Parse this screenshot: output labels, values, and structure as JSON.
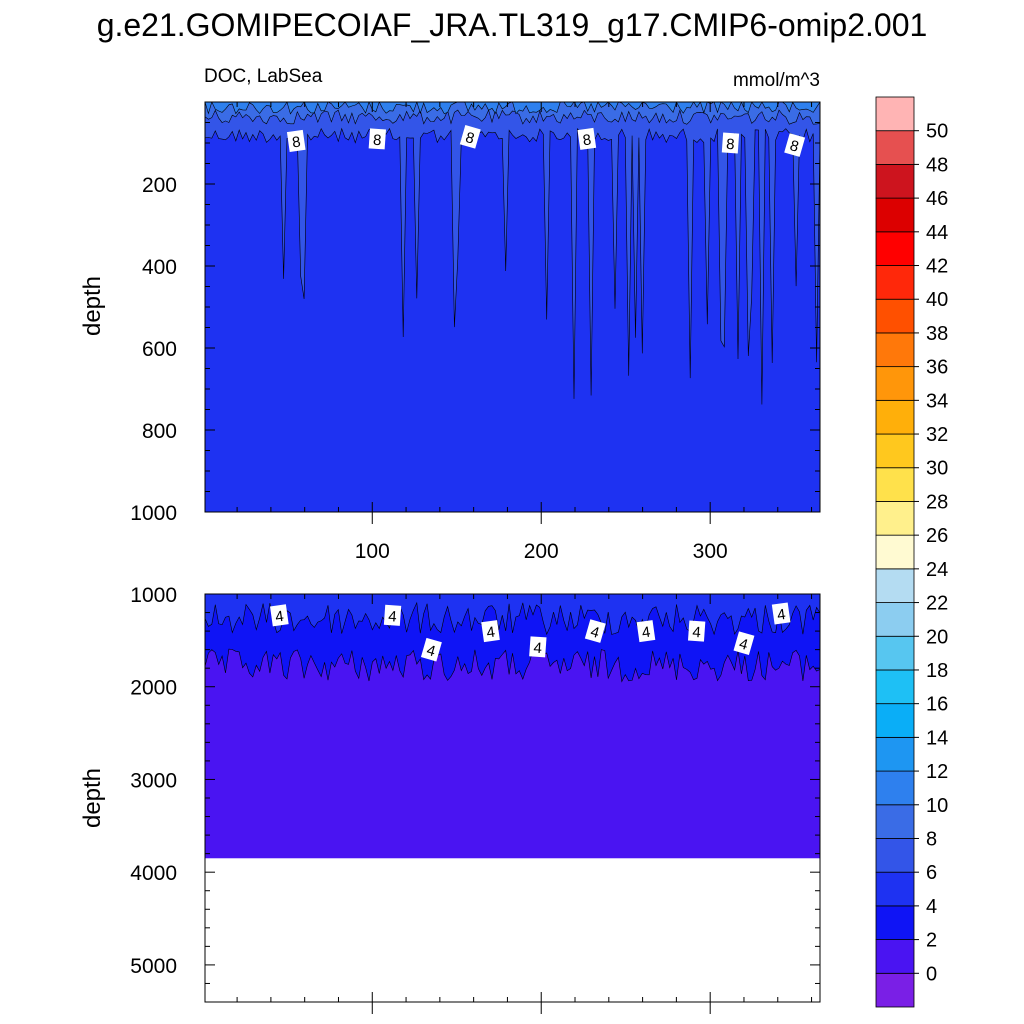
{
  "title": "g.e21.GOMIPECOIAF_JRA.TL319_g17.CMIP6-omip2.001",
  "chart_data": [
    {
      "type": "heatmap",
      "panel": "upper",
      "left_label": "DOC, LabSea",
      "right_label": "mmol/m^3",
      "ylabel": "depth",
      "xlabel": "",
      "xlim": [
        1,
        365
      ],
      "ylim": [
        0,
        1000
      ],
      "y_inverted": true,
      "xticks": [
        100,
        200,
        300
      ],
      "xtick_labels": [
        "100",
        "200",
        "300"
      ],
      "yticks": [
        200,
        400,
        600,
        800,
        1000
      ],
      "ytick_labels": [
        "200",
        "400",
        "600",
        "800",
        "1000"
      ],
      "contour_labels": [
        "8",
        "8",
        "8",
        "8",
        "8",
        "8"
      ],
      "contour_label_x": [
        55,
        103,
        158,
        227,
        312,
        350
      ],
      "contour_label_depth": [
        95,
        90,
        85,
        90,
        100,
        105
      ],
      "layers": [
        {
          "range": "6-8",
          "base_depth": 75,
          "dips_to": [
            680,
            750,
            770,
            790,
            800,
            830
          ]
        },
        {
          "range": "8-10",
          "base_depth": 30
        },
        {
          "range": "10-12",
          "base_depth": 5
        }
      ],
      "background_range": "4-6"
    },
    {
      "type": "heatmap",
      "panel": "lower",
      "ylabel": "depth",
      "xlim": [
        1,
        365
      ],
      "ylim": [
        1000,
        5400
      ],
      "y_inverted": true,
      "yticks": [
        1000,
        2000,
        3000,
        4000,
        5000
      ],
      "ytick_labels": [
        "1000",
        "2000",
        "3000",
        "4000",
        "5000"
      ],
      "bottom_depth": 3850,
      "contour_labels": [
        "4",
        "4",
        "4",
        "4",
        "4",
        "4",
        "4",
        "4",
        "4",
        "4"
      ],
      "contour_label_x": [
        45,
        112,
        135,
        170,
        198,
        232,
        262,
        292,
        320,
        342
      ],
      "contour_label_depth": [
        1230,
        1230,
        1600,
        1400,
        1570,
        1400,
        1400,
        1400,
        1530,
        1210
      ],
      "layers": [
        {
          "range": "2-4",
          "base_depth": 1700
        },
        {
          "range": "4-6",
          "base_depth": 1200
        }
      ],
      "background_range": "0-2"
    }
  ],
  "colorbar": {
    "labels": [
      "0",
      "2",
      "4",
      "6",
      "8",
      "10",
      "12",
      "14",
      "16",
      "18",
      "20",
      "22",
      "24",
      "26",
      "28",
      "30",
      "32",
      "34",
      "36",
      "38",
      "40",
      "42",
      "44",
      "46",
      "48",
      "50"
    ],
    "colors": [
      "#7a1fe6",
      "#4a14f2",
      "#0f14f5",
      "#1e32f2",
      "#3355e8",
      "#3a6ce6",
      "#2e80ee",
      "#1e96f2",
      "#0aaef7",
      "#1ec0f5",
      "#57c6f0",
      "#8ccdf0",
      "#b4dcf2",
      "#fffad2",
      "#fff08c",
      "#ffe14b",
      "#ffc81e",
      "#ffaf0a",
      "#ff960a",
      "#ff780a",
      "#ff5000",
      "#ff280a",
      "#ff0000",
      "#dc0000",
      "#cd141e",
      "#e65050",
      "#ffb4b4"
    ]
  }
}
